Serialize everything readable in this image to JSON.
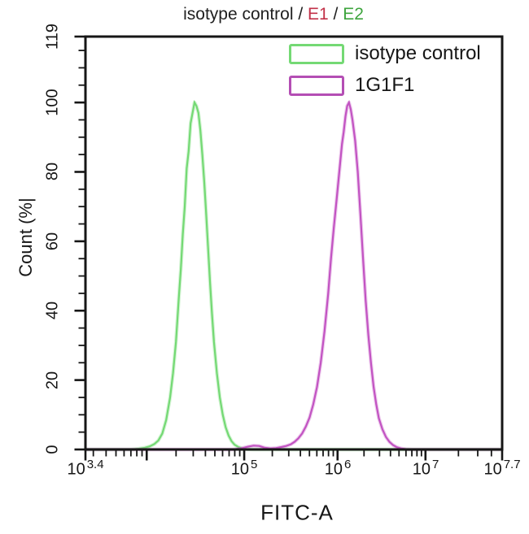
{
  "title": {
    "parts": [
      {
        "text": "isotype control / ",
        "color": "#1f1f1f"
      },
      {
        "text": "E1",
        "color": "#c23148"
      },
      {
        "text": " / ",
        "color": "#1f1f1f"
      },
      {
        "text": "E2",
        "color": "#3ea43e"
      }
    ]
  },
  "legend": {
    "items": [
      {
        "label": "isotype control",
        "color": "#74d974"
      },
      {
        "label": "1G1F1",
        "color": "#b44eb4"
      }
    ]
  },
  "axis_labels": {
    "x": "FITC-A",
    "y": "Count (%|"
  },
  "colors": {
    "axis": "#161616",
    "isotype_curve": "#74d974",
    "antibody_curve": "#c253c2",
    "text": "#161616"
  },
  "chart_data": {
    "type": "line",
    "title": "isotype control / E1 / E2",
    "xlabel": "FITC-A",
    "ylabel": "Count (%|",
    "legend_position": "top-right",
    "grid": false,
    "x_axis": {
      "scale": "log",
      "min_log": 3.4,
      "max_log": 7.7,
      "anchors": [
        [
          3.4,
          0
        ],
        [
          4,
          0.147
        ],
        [
          5,
          0.381
        ],
        [
          6,
          0.605
        ],
        [
          7,
          0.816
        ],
        [
          7.7,
          1
        ]
      ],
      "ticks": [
        {
          "base": "10",
          "exp": "3.4",
          "log": 3.4
        },
        {
          "base": "10",
          "exp": "5",
          "log": 5
        },
        {
          "base": "10",
          "exp": "6",
          "log": 6
        },
        {
          "base": "10",
          "exp": "7",
          "log": 7
        },
        {
          "base": "10",
          "exp": "7.7",
          "log": 7.7
        }
      ],
      "unlabeled_major_logs": [
        4
      ]
    },
    "y_axis": {
      "min": 0,
      "max": 119,
      "labeled_ticks": [
        0,
        20,
        40,
        60,
        80,
        100,
        119
      ],
      "minor_step": 5
    },
    "series": [
      {
        "name": "isotype control",
        "color": "#74d974",
        "peak_log": 4.49,
        "peak_percent": 100,
        "points": [
          [
            3.4,
            0
          ],
          [
            3.85,
            0
          ],
          [
            3.92,
            0.2
          ],
          [
            3.98,
            0.5
          ],
          [
            4.03,
            0.9
          ],
          [
            4.08,
            1.6
          ],
          [
            4.12,
            2.6
          ],
          [
            4.16,
            4.6
          ],
          [
            4.2,
            8.5
          ],
          [
            4.24,
            15
          ],
          [
            4.27,
            22
          ],
          [
            4.3,
            31
          ],
          [
            4.33,
            44
          ],
          [
            4.35,
            52
          ],
          [
            4.37,
            62
          ],
          [
            4.39,
            70
          ],
          [
            4.41,
            81
          ],
          [
            4.43,
            86
          ],
          [
            4.45,
            94
          ],
          [
            4.47,
            97
          ],
          [
            4.49,
            100
          ],
          [
            4.51,
            99
          ],
          [
            4.53,
            97
          ],
          [
            4.55,
            92
          ],
          [
            4.57,
            85
          ],
          [
            4.59,
            77
          ],
          [
            4.61,
            68
          ],
          [
            4.63,
            58
          ],
          [
            4.65,
            48
          ],
          [
            4.67,
            39
          ],
          [
            4.69,
            31
          ],
          [
            4.72,
            22
          ],
          [
            4.75,
            15
          ],
          [
            4.78,
            10
          ],
          [
            4.81,
            6.4
          ],
          [
            4.84,
            4
          ],
          [
            4.87,
            2.4
          ],
          [
            4.9,
            1.4
          ],
          [
            4.94,
            0.7
          ],
          [
            4.98,
            0.3
          ],
          [
            5.03,
            0.1
          ],
          [
            5.1,
            0
          ],
          [
            7.7,
            0
          ]
        ]
      },
      {
        "name": "1G1F1",
        "color": "#c253c2",
        "peak_log": 6.13,
        "peak_percent": 100,
        "points": [
          [
            3.4,
            0
          ],
          [
            4.88,
            0
          ],
          [
            4.97,
            0.3
          ],
          [
            5.04,
            0.8
          ],
          [
            5.1,
            1.1
          ],
          [
            5.16,
            1.0
          ],
          [
            5.22,
            0.5
          ],
          [
            5.28,
            0.3
          ],
          [
            5.34,
            0.4
          ],
          [
            5.4,
            0.7
          ],
          [
            5.45,
            1.0
          ],
          [
            5.5,
            1.5
          ],
          [
            5.54,
            2.2
          ],
          [
            5.58,
            3.2
          ],
          [
            5.62,
            4.6
          ],
          [
            5.66,
            6.6
          ],
          [
            5.7,
            9.2
          ],
          [
            5.74,
            13
          ],
          [
            5.78,
            18
          ],
          [
            5.82,
            25
          ],
          [
            5.86,
            34
          ],
          [
            5.9,
            45
          ],
          [
            5.93,
            55
          ],
          [
            5.96,
            64
          ],
          [
            5.99,
            72
          ],
          [
            6.02,
            80
          ],
          [
            6.05,
            88
          ],
          [
            6.07,
            91.5
          ],
          [
            6.09,
            96
          ],
          [
            6.11,
            99
          ],
          [
            6.13,
            100
          ],
          [
            6.15,
            98
          ],
          [
            6.17,
            95
          ],
          [
            6.2,
            89
          ],
          [
            6.23,
            80
          ],
          [
            6.26,
            68
          ],
          [
            6.29,
            55
          ],
          [
            6.32,
            43
          ],
          [
            6.35,
            33
          ],
          [
            6.38,
            25
          ],
          [
            6.41,
            18
          ],
          [
            6.44,
            13
          ],
          [
            6.47,
            9
          ],
          [
            6.51,
            5.8
          ],
          [
            6.55,
            3.6
          ],
          [
            6.59,
            2.2
          ],
          [
            6.63,
            1.3
          ],
          [
            6.67,
            0.7
          ],
          [
            6.72,
            0.3
          ],
          [
            6.78,
            0.1
          ],
          [
            6.85,
            0
          ],
          [
            7.7,
            0
          ]
        ]
      }
    ]
  }
}
